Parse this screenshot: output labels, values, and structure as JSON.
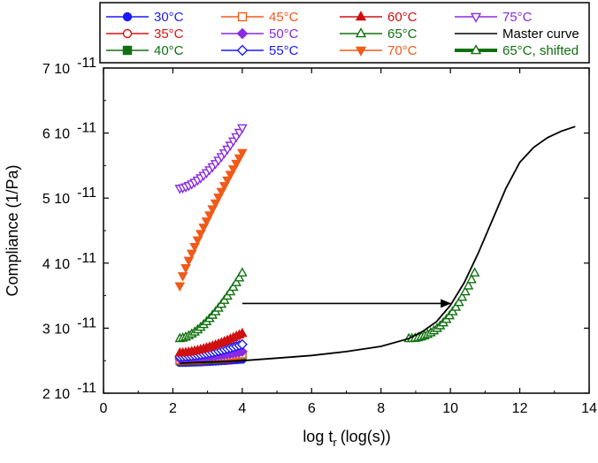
{
  "chart_data": {
    "type": "scatter",
    "title": "",
    "xlabel": "log t",
    "xlabel_sub": "r",
    "xlabel_unit": "(log(s))",
    "ylabel": "Compliance (1/Pa)",
    "xlim": [
      0,
      14
    ],
    "ylim": [
      2e-11,
      7e-11
    ],
    "x_ticks": [
      0,
      2,
      4,
      6,
      8,
      10,
      12,
      14
    ],
    "y_ticks": [
      {
        "value": 2e-11,
        "mant": "2",
        "exp": "-11"
      },
      {
        "value": 3e-11,
        "mant": "3",
        "exp": "-11"
      },
      {
        "value": 4e-11,
        "mant": "4",
        "exp": "-11"
      },
      {
        "value": 5e-11,
        "mant": "5",
        "exp": "-11"
      },
      {
        "value": 6e-11,
        "mant": "6",
        "exp": "-11"
      },
      {
        "value": 7e-11,
        "mant": "7",
        "exp": "-11"
      }
    ],
    "tick_base": "10",
    "grid": false,
    "legend_position": "top",
    "legend_columns": [
      [
        "30°C",
        "35°C",
        "40°C"
      ],
      [
        "45°C",
        "50°C",
        "55°C"
      ],
      [
        "60°C",
        "65°C",
        "70°C"
      ],
      [
        "75°C",
        "Master curve",
        "65°C, shifted"
      ]
    ],
    "series": [
      {
        "name": "30°C",
        "color": "#1a1aff",
        "marker": "circle",
        "filled": true,
        "x_range": [
          2.2,
          4.0
        ],
        "y_start": 2.47e-11,
        "y_end": 2.52e-11
      },
      {
        "name": "35°C",
        "color": "#e01010",
        "marker": "circle",
        "filled": false,
        "x_range": [
          2.2,
          4.0
        ],
        "y_start": 2.49e-11,
        "y_end": 2.55e-11
      },
      {
        "name": "40°C",
        "color": "#107010",
        "marker": "square",
        "filled": true,
        "x_range": [
          2.2,
          4.0
        ],
        "y_start": 2.5e-11,
        "y_end": 2.57e-11
      },
      {
        "name": "45°C",
        "color": "#f05a1a",
        "marker": "square",
        "filled": false,
        "x_range": [
          2.2,
          4.0
        ],
        "y_start": 2.51e-11,
        "y_end": 2.6e-11
      },
      {
        "name": "50°C",
        "color": "#8a2be2",
        "marker": "diamond",
        "filled": true,
        "x_range": [
          2.2,
          4.0
        ],
        "y_start": 2.53e-11,
        "y_end": 2.64e-11
      },
      {
        "name": "55°C",
        "color": "#1a1aff",
        "marker": "diamond",
        "filled": false,
        "x_range": [
          2.2,
          4.0
        ],
        "y_start": 2.56e-11,
        "y_end": 2.75e-11
      },
      {
        "name": "60°C",
        "color": "#d01010",
        "marker": "triangle-up",
        "filled": true,
        "x_range": [
          2.2,
          4.0
        ],
        "y_start": 2.62e-11,
        "y_end": 2.92e-11
      },
      {
        "name": "65°C",
        "color": "#107010",
        "marker": "triangle-up",
        "filled": false,
        "x_range": [
          2.2,
          4.0
        ],
        "y_start": 2.84e-11,
        "y_end": 3.85e-11
      },
      {
        "name": "70°C",
        "color": "#f05a1a",
        "marker": "triangle-down",
        "filled": true,
        "x_range": [
          2.2,
          4.0
        ],
        "y_start": 3.65e-11,
        "y_end": 5.7e-11
      },
      {
        "name": "75°C",
        "color": "#8a2be2",
        "marker": "triangle-down",
        "filled": false,
        "x_range": [
          2.2,
          4.0
        ],
        "y_start": 5.15e-11,
        "y_end": 6.08e-11
      },
      {
        "name": "65°C, shifted",
        "color": "#107010",
        "marker": "triangle-up",
        "filled": false,
        "x_range": [
          8.8,
          10.7
        ],
        "y_start": 2.84e-11,
        "y_end": 3.85e-11
      }
    ],
    "master_curve": {
      "name": "Master curve",
      "color": "#000000",
      "x": [
        2.2,
        3,
        4,
        5,
        6,
        7,
        8,
        8.8,
        9.2,
        9.6,
        10.0,
        10.4,
        10.8,
        11.2,
        11.6,
        12.0,
        12.4,
        12.8,
        13.2,
        13.6
      ],
      "y": [
        2.46e-11,
        2.48e-11,
        2.5e-11,
        2.54e-11,
        2.58e-11,
        2.64e-11,
        2.72e-11,
        2.84e-11,
        2.95e-11,
        3.1e-11,
        3.35e-11,
        3.7e-11,
        4.15e-11,
        4.65e-11,
        5.15e-11,
        5.55e-11,
        5.78e-11,
        5.93e-11,
        6.03e-11,
        6.1e-11
      ]
    },
    "annotation": {
      "type": "arrow",
      "from": [
        4.0,
        3.38e-11
      ],
      "to": [
        10.0,
        3.38e-11
      ]
    }
  }
}
